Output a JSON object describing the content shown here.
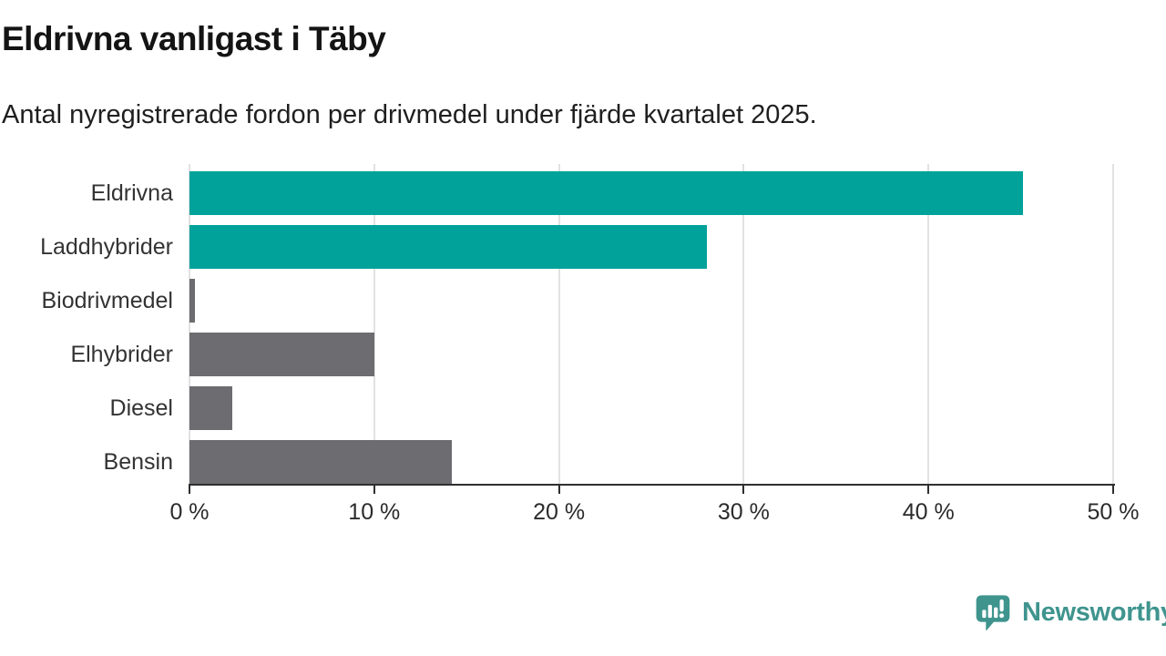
{
  "header": {
    "title": "Eldrivna vanligast i Täby",
    "subtitle": "Antal nyregistrerade fordon per drivmedel under fjärde kvartalet 2025."
  },
  "chart_data": {
    "type": "bar",
    "orientation": "horizontal",
    "title": "Eldrivna vanligast i Täby",
    "subtitle": "Antal nyregistrerade fordon per drivmedel under fjärde kvartalet 2025.",
    "categories": [
      "Eldrivna",
      "Laddhybrider",
      "Biodrivmedel",
      "Elhybrider",
      "Diesel",
      "Bensin"
    ],
    "values": [
      45.1,
      28,
      0.3,
      10,
      2.3,
      14.2
    ],
    "unit": "%",
    "bar_colors": [
      "#00a29a",
      "#00a29a",
      "#6c6c71",
      "#6c6c71",
      "#6c6c71",
      "#6c6c71"
    ],
    "xlabel": "",
    "ylabel": "",
    "xlim": [
      0,
      50
    ],
    "x_tick_values": [
      0,
      10,
      20,
      30,
      40,
      50
    ],
    "x_tick_labels": [
      "0 %",
      "10 %",
      "20 %",
      "30 %",
      "40 %",
      "50 %"
    ],
    "grid": "vertical-only",
    "legend": "none"
  },
  "branding": {
    "logo_text": "Newsworthy",
    "logo_icon": "newsworthy-speech-bubble-barchart-icon"
  },
  "colors": {
    "background": "#ffffff",
    "title_text": "#141414",
    "subtitle_text": "#1f1f1f",
    "label_text": "#333333",
    "tick_text": "#2b2b2b",
    "grid_line": "#e2e2e2",
    "axis_line": "#2f2f2f",
    "brand": "#3f948e"
  }
}
